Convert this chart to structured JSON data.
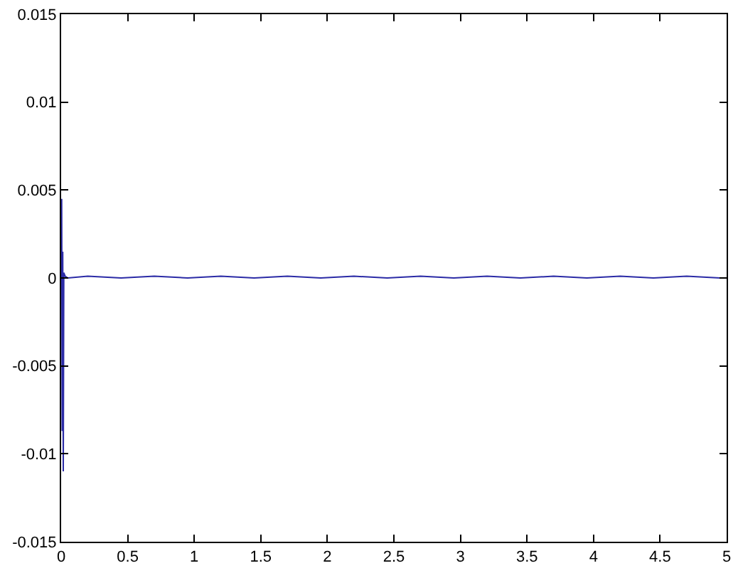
{
  "chart_data": {
    "type": "line",
    "x": [
      0,
      0.004,
      0.008,
      0.012,
      0.016,
      0.02,
      0.03,
      0.05,
      0.2,
      0.45,
      0.7,
      0.95,
      1.2,
      1.45,
      1.7,
      1.95,
      2.2,
      2.45,
      2.7,
      2.95,
      3.2,
      3.45,
      3.7,
      3.95,
      4.2,
      4.45,
      4.7,
      4.95
    ],
    "series": [
      {
        "color": "#2b2ba6",
        "values": [
          0,
          0.0045,
          -0.0087,
          0.0015,
          -0.011,
          0.0003,
          0.0001,
          0,
          0.0001,
          0,
          0.0001,
          0,
          0.0001,
          0,
          0.0001,
          0,
          0.0001,
          0,
          0.0001,
          0,
          0.0001,
          0,
          0.0001,
          0,
          0.0001,
          0,
          0.0001,
          0
        ]
      }
    ],
    "xlim": [
      0,
      5
    ],
    "xticks": [
      0,
      0.5,
      1,
      1.5,
      2,
      2.5,
      3,
      3.5,
      4,
      4.5,
      5
    ],
    "ylim": [
      -0.015,
      0.015
    ],
    "yticks": [
      -0.015,
      -0.01,
      -0.005,
      0,
      0.005,
      0.01,
      0.015
    ],
    "marker": "none",
    "line_style": "solid"
  }
}
